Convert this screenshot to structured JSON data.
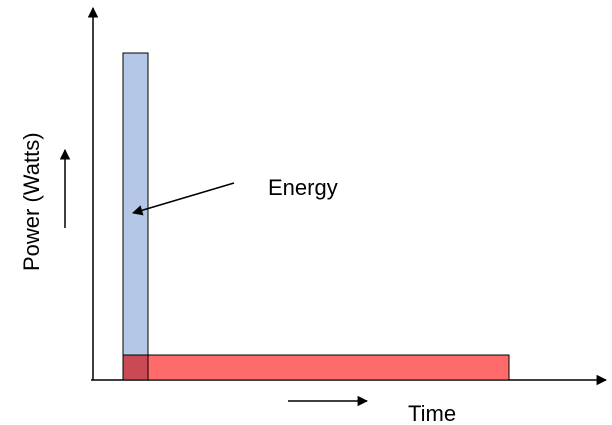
{
  "labels": {
    "y_axis": "Power (Watts)",
    "x_axis": "Time",
    "annotation": "Energy"
  },
  "colors": {
    "tall_bar_fill": "#b4c7e7",
    "wide_bar_fill": "#ff6a6a",
    "overlap_fill": "#c94a55",
    "stroke": "#000000"
  }
}
